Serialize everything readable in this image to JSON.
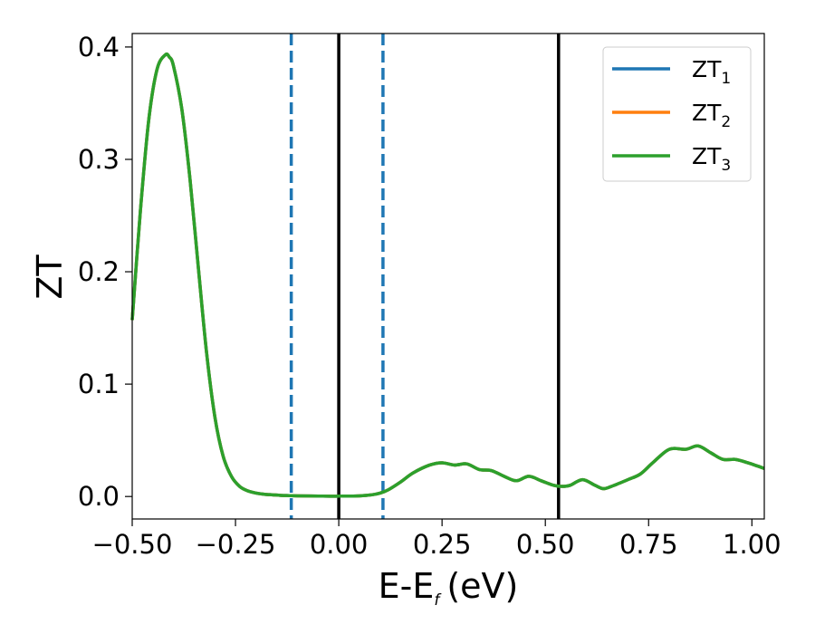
{
  "chart_data": {
    "type": "line",
    "xlabel": "E-E",
    "xlabel_subscript": "f",
    "xlabel_unit": "(eV)",
    "ylabel": "ZT",
    "xlim": [
      -0.5,
      1.03
    ],
    "ylim": [
      -0.02,
      0.412
    ],
    "xticks": [
      -0.5,
      -0.25,
      0.0,
      0.25,
      0.5,
      0.75,
      1.0
    ],
    "xtick_labels": [
      "−0.50",
      "−0.25",
      "0.00",
      "0.25",
      "0.50",
      "0.75",
      "1.00"
    ],
    "yticks": [
      0.0,
      0.1,
      0.2,
      0.3,
      0.4
    ],
    "ytick_labels": [
      "0.0",
      "0.1",
      "0.2",
      "0.3",
      "0.4"
    ],
    "grid": false,
    "legend_position": "top-right",
    "colors": {
      "series1": "#1f77b4",
      "series2": "#ff7f0e",
      "series3": "#2ca02c",
      "vline_solid": "#000000",
      "vline_dashed": "#1f77b4"
    },
    "vlines_solid": [
      0.0,
      0.532
    ],
    "vlines_dashed": [
      -0.115,
      0.107
    ],
    "x": [
      -0.5,
      -0.48,
      -0.46,
      -0.44,
      -0.42,
      -0.41,
      -0.4,
      -0.38,
      -0.36,
      -0.34,
      -0.32,
      -0.3,
      -0.28,
      -0.26,
      -0.24,
      -0.22,
      -0.2,
      -0.18,
      -0.16,
      -0.14,
      -0.12,
      -0.1,
      -0.05,
      0.0,
      0.05,
      0.08,
      0.1,
      0.12,
      0.15,
      0.18,
      0.22,
      0.25,
      0.28,
      0.31,
      0.34,
      0.37,
      0.4,
      0.43,
      0.46,
      0.49,
      0.52,
      0.54,
      0.56,
      0.59,
      0.62,
      0.64,
      0.66,
      0.7,
      0.73,
      0.76,
      0.8,
      0.84,
      0.87,
      0.9,
      0.93,
      0.96,
      0.99,
      1.03
    ],
    "series": [
      {
        "name": "ZT",
        "name_subscript": "1",
        "values": [
          0.157,
          0.255,
          0.335,
          0.38,
          0.393,
          0.391,
          0.383,
          0.345,
          0.282,
          0.204,
          0.128,
          0.071,
          0.036,
          0.018,
          0.009,
          0.005,
          0.003,
          0.002,
          0.0015,
          0.001,
          0.0008,
          0.0006,
          0.0004,
          0.0003,
          0.0006,
          0.0015,
          0.003,
          0.006,
          0.013,
          0.021,
          0.028,
          0.03,
          0.028,
          0.029,
          0.024,
          0.023,
          0.018,
          0.014,
          0.018,
          0.014,
          0.01,
          0.009,
          0.01,
          0.015,
          0.01,
          0.007,
          0.009,
          0.015,
          0.02,
          0.03,
          0.042,
          0.042,
          0.045,
          0.039,
          0.033,
          0.033,
          0.03,
          0.025
        ]
      },
      {
        "name": "ZT",
        "name_subscript": "2",
        "values": [
          0.157,
          0.255,
          0.335,
          0.38,
          0.393,
          0.391,
          0.383,
          0.345,
          0.282,
          0.204,
          0.128,
          0.071,
          0.036,
          0.018,
          0.009,
          0.005,
          0.003,
          0.002,
          0.0015,
          0.001,
          0.0008,
          0.0006,
          0.0004,
          0.0003,
          0.0006,
          0.0015,
          0.003,
          0.006,
          0.013,
          0.021,
          0.028,
          0.03,
          0.028,
          0.029,
          0.024,
          0.023,
          0.018,
          0.014,
          0.018,
          0.014,
          0.01,
          0.009,
          0.01,
          0.015,
          0.01,
          0.007,
          0.009,
          0.015,
          0.02,
          0.03,
          0.042,
          0.042,
          0.045,
          0.039,
          0.033,
          0.033,
          0.03,
          0.025
        ]
      },
      {
        "name": "ZT",
        "name_subscript": "3",
        "values": [
          0.157,
          0.255,
          0.335,
          0.38,
          0.393,
          0.391,
          0.383,
          0.345,
          0.282,
          0.204,
          0.128,
          0.071,
          0.036,
          0.018,
          0.009,
          0.005,
          0.003,
          0.002,
          0.0015,
          0.001,
          0.0008,
          0.0006,
          0.0004,
          0.0003,
          0.0006,
          0.0015,
          0.003,
          0.006,
          0.013,
          0.021,
          0.028,
          0.03,
          0.028,
          0.029,
          0.024,
          0.023,
          0.018,
          0.014,
          0.018,
          0.014,
          0.01,
          0.009,
          0.01,
          0.015,
          0.01,
          0.007,
          0.009,
          0.015,
          0.02,
          0.03,
          0.042,
          0.042,
          0.045,
          0.039,
          0.033,
          0.033,
          0.03,
          0.025
        ]
      }
    ]
  }
}
